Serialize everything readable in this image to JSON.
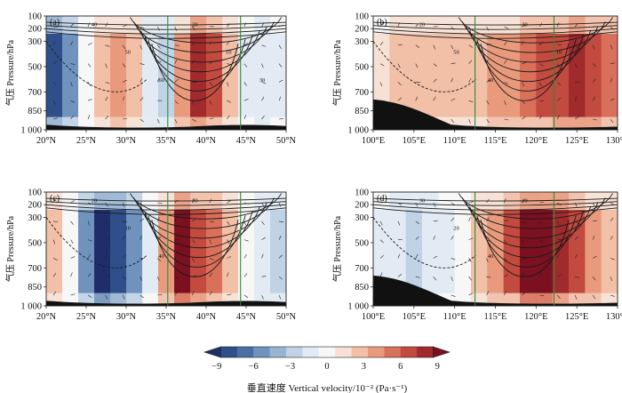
{
  "figure": {
    "description_type": "vertical-velocity cross sections, 4 panels"
  },
  "chart_data": [
    {
      "type": "heatmap",
      "panel_label": "(a)",
      "ylabel": "气压 Pressure/hPa",
      "y_ticks": [
        "100",
        "200",
        "300",
        "500",
        "700",
        "850",
        "1 000"
      ],
      "y_values": [
        100,
        200,
        300,
        500,
        700,
        850,
        1000
      ],
      "x_ticks": [
        "20°N",
        "25°N",
        "30°N",
        "35°N",
        "40°N",
        "45°N",
        "50°N"
      ],
      "x_values": [
        20,
        25,
        30,
        35,
        40,
        45,
        50
      ],
      "xlim": [
        20,
        50
      ],
      "ylim": [
        100,
        1000
      ],
      "green_lines_x": [
        35.2,
        44.3
      ],
      "contour_labels": [
        "40",
        "50",
        "60",
        "20",
        "10",
        "30"
      ],
      "cells": [
        {
          "x": 21,
          "v": -8
        },
        {
          "x": 23,
          "v": -5
        },
        {
          "x": 25,
          "v": 0
        },
        {
          "x": 27,
          "v": 3
        },
        {
          "x": 29,
          "v": 4
        },
        {
          "x": 31,
          "v": 2
        },
        {
          "x": 33,
          "v": -2
        },
        {
          "x": 35,
          "v": -3
        },
        {
          "x": 37,
          "v": 4
        },
        {
          "x": 39,
          "v": 8
        },
        {
          "x": 41,
          "v": 6
        },
        {
          "x": 43,
          "v": 3
        },
        {
          "x": 45,
          "v": -1
        },
        {
          "x": 47,
          "v": -2
        },
        {
          "x": 49,
          "v": -1
        }
      ]
    },
    {
      "type": "heatmap",
      "panel_label": "(b)",
      "ylabel": "气压 Pressure/hPa",
      "y_ticks": [
        "100",
        "200",
        "300",
        "500",
        "700",
        "850",
        "1 000"
      ],
      "y_values": [
        100,
        200,
        300,
        500,
        700,
        850,
        1000
      ],
      "x_ticks": [
        "100°E",
        "105°E",
        "110°E",
        "115°E",
        "120°E",
        "125°E",
        "130°E"
      ],
      "x_values": [
        100,
        105,
        110,
        115,
        120,
        125,
        130
      ],
      "xlim": [
        100,
        130
      ],
      "ylim": [
        100,
        1000
      ],
      "green_lines_x": [
        112.5,
        122.2
      ],
      "contour_labels": [
        "20",
        "50",
        "40",
        "30",
        "10"
      ],
      "cells": [
        {
          "x": 101,
          "v": 1
        },
        {
          "x": 103,
          "v": 2
        },
        {
          "x": 105,
          "v": 2
        },
        {
          "x": 107,
          "v": 2
        },
        {
          "x": 109,
          "v": 3
        },
        {
          "x": 111,
          "v": 3
        },
        {
          "x": 113,
          "v": 3
        },
        {
          "x": 115,
          "v": 4
        },
        {
          "x": 117,
          "v": 4
        },
        {
          "x": 119,
          "v": 5
        },
        {
          "x": 121,
          "v": 6
        },
        {
          "x": 123,
          "v": 7
        },
        {
          "x": 125,
          "v": 8
        },
        {
          "x": 127,
          "v": 7
        },
        {
          "x": 129,
          "v": 5
        }
      ]
    },
    {
      "type": "heatmap",
      "panel_label": "(c)",
      "ylabel": "气压 Pressure/hPa",
      "y_ticks": [
        "100",
        "200",
        "300",
        "500",
        "700",
        "850",
        "1 000"
      ],
      "y_values": [
        100,
        200,
        300,
        500,
        700,
        850,
        1000
      ],
      "x_ticks": [
        "20°N",
        "25°N",
        "30°N",
        "35°N",
        "40°N",
        "45°N",
        "50°N"
      ],
      "x_values": [
        20,
        25,
        30,
        35,
        40,
        45,
        50
      ],
      "xlim": [
        20,
        50
      ],
      "ylim": [
        100,
        1000
      ],
      "green_lines_x": [
        35.2,
        44.3
      ],
      "contour_labels": [
        "20",
        "10",
        "40",
        "30"
      ],
      "cells": [
        {
          "x": 21,
          "v": 3
        },
        {
          "x": 23,
          "v": 0
        },
        {
          "x": 25,
          "v": -5
        },
        {
          "x": 27,
          "v": -9
        },
        {
          "x": 29,
          "v": -8
        },
        {
          "x": 31,
          "v": -5
        },
        {
          "x": 33,
          "v": -1
        },
        {
          "x": 35,
          "v": 4
        },
        {
          "x": 37,
          "v": 9
        },
        {
          "x": 39,
          "v": 7
        },
        {
          "x": 41,
          "v": 5
        },
        {
          "x": 43,
          "v": 3
        },
        {
          "x": 45,
          "v": 0
        },
        {
          "x": 47,
          "v": -2
        },
        {
          "x": 49,
          "v": -3
        }
      ]
    },
    {
      "type": "heatmap",
      "panel_label": "(d)",
      "ylabel": "气压 Pressure/hPa",
      "y_ticks": [
        "100",
        "200",
        "300",
        "500",
        "700",
        "850",
        "1 000"
      ],
      "y_values": [
        100,
        200,
        300,
        500,
        700,
        850,
        1000
      ],
      "x_ticks": [
        "100°E",
        "105°E",
        "110°E",
        "115°E",
        "120°E",
        "125°E",
        "130°E"
      ],
      "x_values": [
        100,
        105,
        110,
        115,
        120,
        125,
        130
      ],
      "xlim": [
        100,
        130
      ],
      "ylim": [
        100,
        1000
      ],
      "green_lines_x": [
        112.5,
        122.2
      ],
      "contour_labels": [
        "30",
        "20",
        "40",
        "10"
      ],
      "cells": [
        {
          "x": 101,
          "v": -1
        },
        {
          "x": 103,
          "v": -2
        },
        {
          "x": 105,
          "v": -3
        },
        {
          "x": 107,
          "v": -2
        },
        {
          "x": 109,
          "v": -1
        },
        {
          "x": 111,
          "v": 0
        },
        {
          "x": 113,
          "v": 2
        },
        {
          "x": 115,
          "v": 4
        },
        {
          "x": 117,
          "v": 6
        },
        {
          "x": 119,
          "v": 9
        },
        {
          "x": 121,
          "v": 9
        },
        {
          "x": 123,
          "v": 8
        },
        {
          "x": 125,
          "v": 6
        },
        {
          "x": 127,
          "v": 4
        },
        {
          "x": 129,
          "v": 2
        }
      ]
    }
  ],
  "colorbar": {
    "type": "colorbar",
    "range": [
      -10,
      10
    ],
    "tick_values": [
      -9,
      -6,
      -3,
      0,
      3,
      6,
      9
    ],
    "tick_labels": [
      "−9",
      "−6",
      "−3",
      "0",
      "3",
      "6",
      "9"
    ],
    "title": "垂直速度 Vertical velocity/10⁻² (Pa·s⁻¹)",
    "colors": [
      "#1f2d6b",
      "#2f4f8a",
      "#4a6fa5",
      "#6f93bd",
      "#97b4d3",
      "#bfd2e6",
      "#e2ebf3",
      "#f7f7f7",
      "#f7e0d4",
      "#f2bfa7",
      "#e99a7d",
      "#d9705a",
      "#c24a3f",
      "#a12a2d",
      "#7a1020"
    ]
  }
}
